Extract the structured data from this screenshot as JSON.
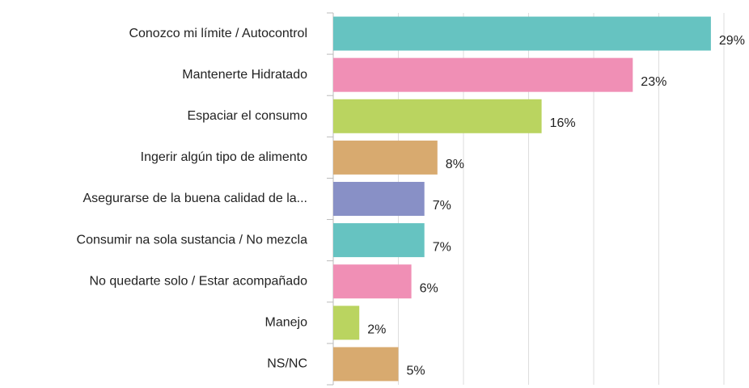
{
  "chart_data": {
    "type": "barh",
    "categories": [
      "Conozco mi límite / Autocontrol",
      "Mantenerte Hidratado",
      "Espaciar el consumo",
      "Ingerir algún tipo de alimento",
      "Asegurarse de la buena calidad de la...",
      "Consumir na sola sustancia / No mezcla",
      "No quedarte solo / Estar acompañado",
      "Manejo",
      "NS/NC"
    ],
    "values": [
      29,
      23,
      16,
      8,
      7,
      7,
      6,
      2,
      5
    ],
    "value_labels": [
      "29%",
      "23%",
      "16%",
      "8%",
      "7%",
      "7%",
      "6%",
      "2%",
      "5%"
    ],
    "colors": [
      "#66c3c1",
      "#f08fb5",
      "#bad460",
      "#d8aa6f",
      "#8890c6",
      "#66c3c1",
      "#f08fb5",
      "#bad460",
      "#d8aa6f"
    ],
    "xlim": [
      0,
      30
    ],
    "xticks": [
      0,
      5,
      10,
      15,
      20,
      25,
      30
    ],
    "grid": true
  }
}
